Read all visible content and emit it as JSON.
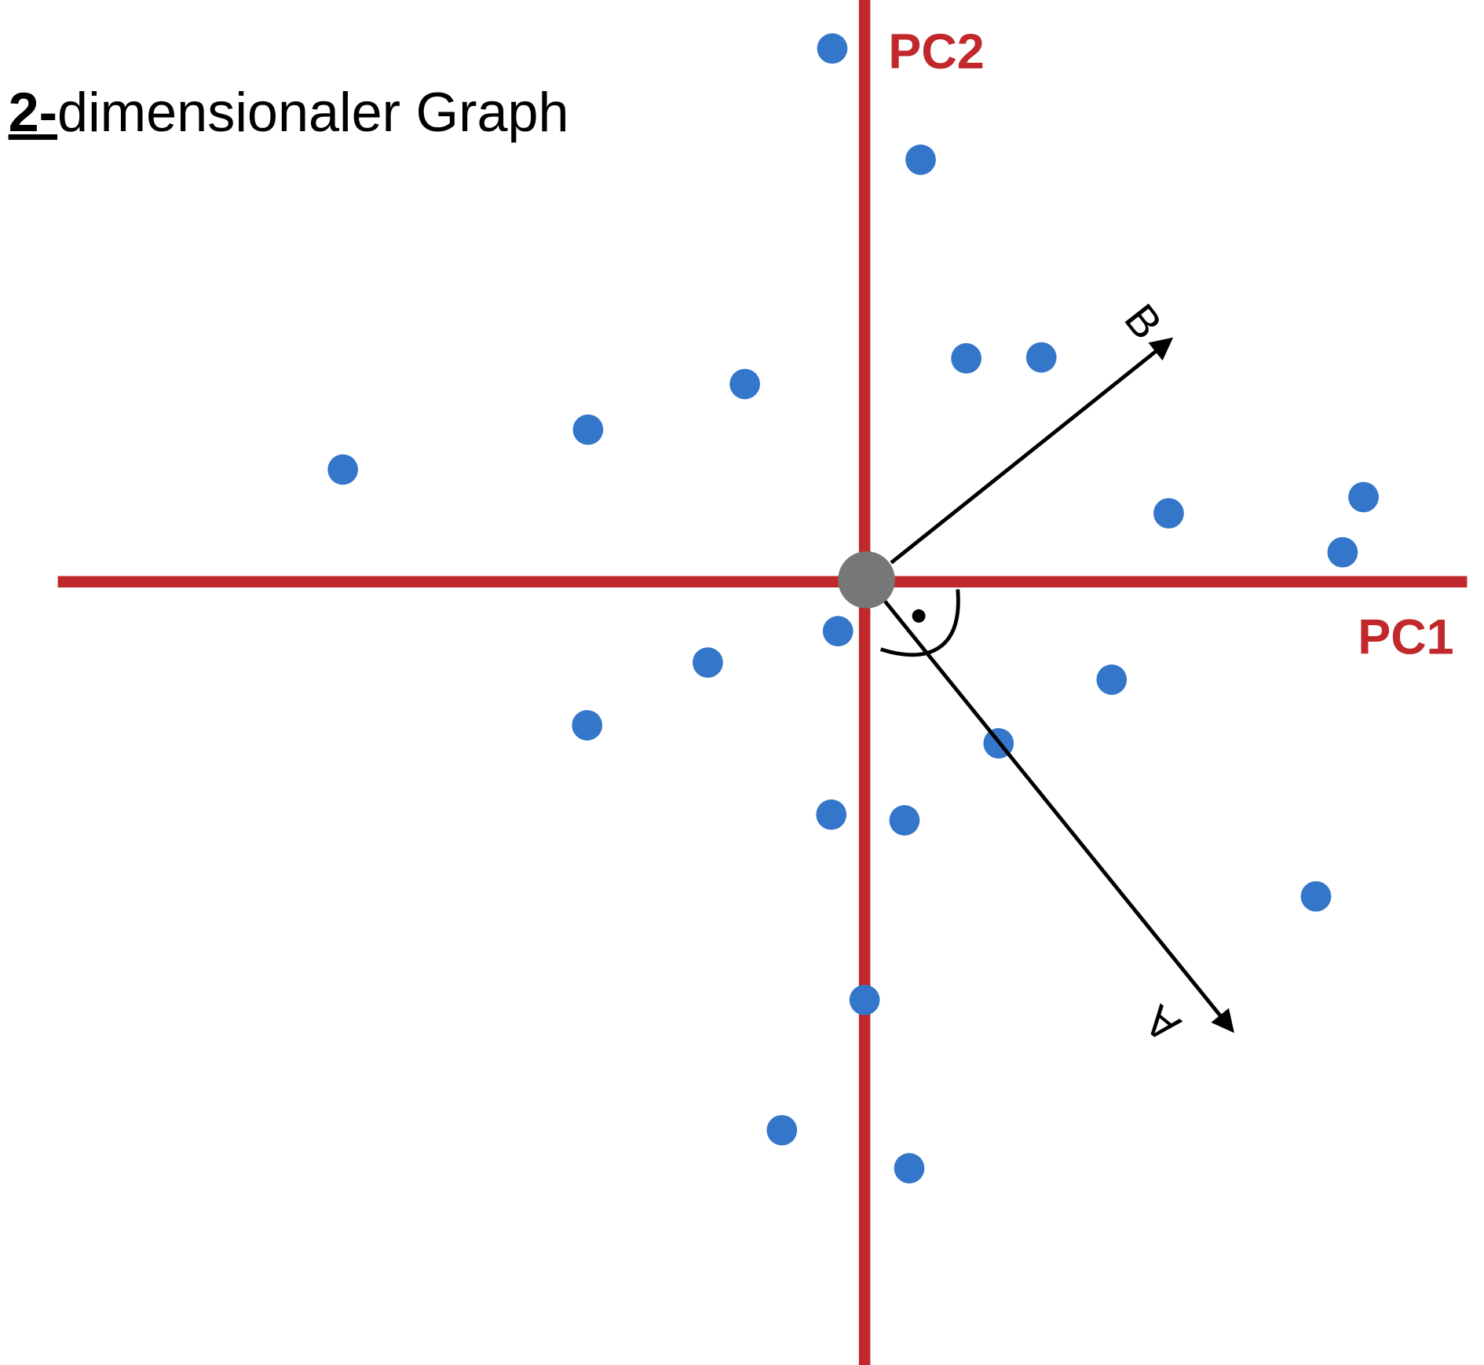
{
  "title": {
    "number": "2-",
    "text": "dimensionaler Graph"
  },
  "axes": {
    "pc1": "PC1",
    "pc2": "PC2"
  },
  "vectors": {
    "a": "A",
    "b": "B"
  }
}
